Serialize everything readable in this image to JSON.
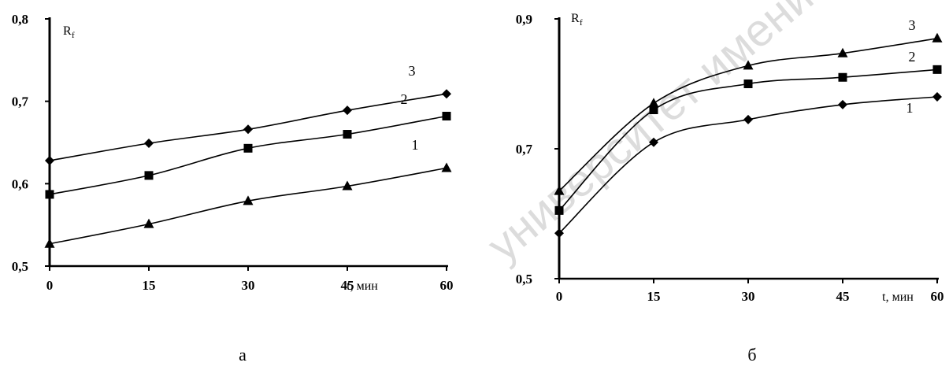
{
  "watermark": "университет имени Н. Г.",
  "chart_data": [
    {
      "type": "line",
      "panel_label": "а",
      "xlabel": "t, мин",
      "ylabel": "R",
      "ylabel_sub": "f",
      "xlim": [
        0,
        60
      ],
      "ylim": [
        0.5,
        0.8
      ],
      "x_ticks": [
        "0",
        "15",
        "30",
        "45",
        "60"
      ],
      "x_tick_values": [
        0,
        15,
        30,
        45,
        60
      ],
      "y_ticks": [
        "0,5",
        "0,6",
        "0,7",
        "0,8"
      ],
      "y_tick_values": [
        0.5,
        0.6,
        0.7,
        0.8
      ],
      "grid": false,
      "series": [
        {
          "name": "1",
          "marker": "triangle",
          "x": [
            0,
            15,
            30,
            45,
            60
          ],
          "y": [
            0.527,
            0.551,
            0.579,
            0.597,
            0.619
          ]
        },
        {
          "name": "2",
          "marker": "square",
          "x": [
            0,
            15,
            30,
            45,
            60
          ],
          "y": [
            0.587,
            0.61,
            0.643,
            0.66,
            0.682
          ]
        },
        {
          "name": "3",
          "marker": "diamond",
          "x": [
            0,
            15,
            30,
            45,
            60
          ],
          "y": [
            0.628,
            0.649,
            0.666,
            0.689,
            0.709
          ]
        }
      ]
    },
    {
      "type": "line",
      "panel_label": "б",
      "xlabel": "t, мин",
      "ylabel": "R",
      "ylabel_sub": "f",
      "xlim": [
        0,
        60
      ],
      "ylim": [
        0.5,
        0.9
      ],
      "x_ticks": [
        "0",
        "15",
        "30",
        "45",
        "60"
      ],
      "x_tick_values": [
        0,
        15,
        30,
        45,
        60
      ],
      "y_ticks": [
        "0,5",
        "0,7",
        "0,9"
      ],
      "y_tick_values": [
        0.5,
        0.7,
        0.9
      ],
      "grid": false,
      "series": [
        {
          "name": "1",
          "marker": "diamond",
          "x": [
            0,
            15,
            30,
            45,
            60
          ],
          "y": [
            0.57,
            0.71,
            0.745,
            0.768,
            0.78
          ]
        },
        {
          "name": "2",
          "marker": "square",
          "x": [
            0,
            15,
            30,
            45,
            60
          ],
          "y": [
            0.605,
            0.76,
            0.8,
            0.81,
            0.822
          ]
        },
        {
          "name": "3",
          "marker": "triangle",
          "x": [
            0,
            15,
            30,
            45,
            60
          ],
          "y": [
            0.635,
            0.77,
            0.828,
            0.847,
            0.87
          ]
        }
      ]
    }
  ]
}
